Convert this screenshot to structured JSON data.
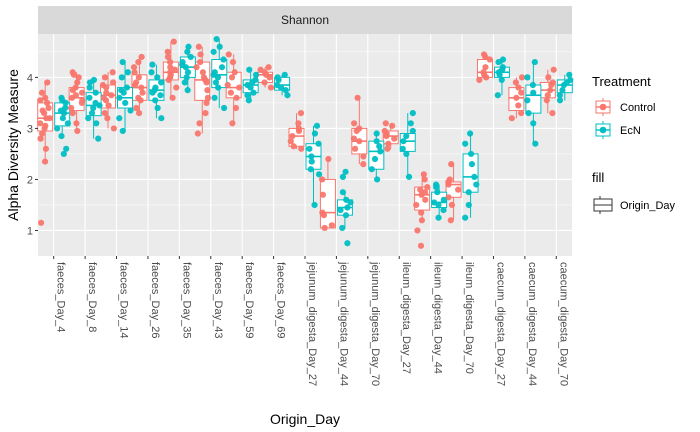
{
  "chart_data": {
    "type": "box",
    "facet_label": "Shannon",
    "xlabel": "Origin_Day",
    "ylabel": "Alpha Diversity Measure",
    "ylim": [
      0.5,
      4.85
    ],
    "y_ticks": [
      1,
      2,
      3,
      4
    ],
    "grid": true,
    "legend_position": "right",
    "categories": [
      "faeces_Day_4",
      "faeces_Day_8",
      "faeces_Day_14",
      "faeces_Day_26",
      "faeces_Day_35",
      "faeces_Day_43",
      "faeces_Day_59",
      "faeces_Day_69",
      "jejunum_digesta_Day_27",
      "jejunum_digesta_Day_44",
      "jejunum_digesta_Day_70",
      "ileum_digesta_Day_27",
      "ileum_digesta_Day_44",
      "ileum_digesta_Day_70",
      "caecum_digesta_Day_27",
      "caecum_digesta_Day_44",
      "caecum_digesta_Day_70"
    ],
    "series": [
      {
        "name": "Control",
        "color": "#F8766D",
        "boxes": [
          {
            "min": 2.35,
            "q1": 2.95,
            "median": 3.2,
            "q3": 3.5,
            "max": 3.9,
            "outliers": [
              1.15
            ],
            "points": [
              2.35,
              2.6,
              2.8,
              2.9,
              3.0,
              3.05,
              3.1,
              3.2,
              3.2,
              3.3,
              3.35,
              3.4,
              3.5,
              3.55,
              3.6,
              3.7,
              3.9,
              1.15
            ]
          },
          {
            "min": 2.95,
            "q1": 3.35,
            "median": 3.6,
            "q3": 3.8,
            "max": 4.1,
            "outliers": [],
            "points": [
              2.95,
              3.1,
              3.3,
              3.4,
              3.5,
              3.55,
              3.6,
              3.65,
              3.7,
              3.75,
              3.8,
              3.9,
              4.0,
              4.05,
              4.1
            ]
          },
          {
            "min": 3.0,
            "q1": 3.4,
            "median": 3.65,
            "q3": 3.85,
            "max": 4.1,
            "outliers": [],
            "points": [
              3.0,
              3.2,
              3.3,
              3.45,
              3.55,
              3.6,
              3.65,
              3.7,
              3.8,
              3.85,
              3.9,
              4.0,
              4.1
            ]
          },
          {
            "min": 3.3,
            "q1": 3.55,
            "median": 3.8,
            "q3": 4.05,
            "max": 4.4,
            "outliers": [],
            "points": [
              3.3,
              3.4,
              3.55,
              3.6,
              3.7,
              3.8,
              3.85,
              3.9,
              4.0,
              4.1,
              4.2,
              4.3,
              4.4
            ]
          },
          {
            "min": 3.6,
            "q1": 3.95,
            "median": 4.1,
            "q3": 4.3,
            "max": 4.7,
            "outliers": [],
            "points": [
              3.6,
              3.8,
              3.95,
              4.0,
              4.05,
              4.1,
              4.15,
              4.2,
              4.3,
              4.4,
              4.5,
              4.7
            ]
          },
          {
            "min": 2.9,
            "q1": 3.55,
            "median": 3.95,
            "q3": 4.3,
            "max": 4.6,
            "outliers": [],
            "points": [
              2.9,
              3.1,
              3.3,
              3.5,
              3.6,
              3.75,
              3.9,
              3.95,
              4.0,
              4.1,
              4.2,
              4.3,
              4.45,
              4.6
            ]
          },
          {
            "min": 3.1,
            "q1": 3.6,
            "median": 3.8,
            "q3": 4.1,
            "max": 4.45,
            "outliers": [],
            "points": [
              3.1,
              3.4,
              3.6,
              3.7,
              3.8,
              3.85,
              4.0,
              4.1,
              4.3,
              4.45
            ]
          },
          {
            "min": 3.8,
            "q1": 3.9,
            "median": 4.05,
            "q3": 4.1,
            "max": 4.2,
            "outliers": [],
            "points": [
              3.8,
              3.9,
              4.0,
              4.05,
              4.1,
              4.15,
              4.2
            ]
          },
          {
            "min": 2.6,
            "q1": 2.65,
            "median": 2.85,
            "q3": 3.0,
            "max": 3.3,
            "outliers": [],
            "points": [
              2.6,
              2.65,
              2.75,
              2.85,
              2.95,
              3.0,
              3.1,
              3.3
            ]
          },
          {
            "min": 1.05,
            "q1": 1.05,
            "median": 1.35,
            "q3": 2.0,
            "max": 2.4,
            "outliers": [],
            "points": [
              1.05,
              1.1,
              1.3,
              1.35,
              1.7,
              2.0,
              2.4
            ]
          },
          {
            "min": 2.3,
            "q1": 2.5,
            "median": 2.75,
            "q3": 3.0,
            "max": 3.6,
            "outliers": [],
            "points": [
              2.3,
              2.45,
              2.6,
              2.75,
              2.8,
              2.95,
              3.0,
              3.1,
              3.6
            ]
          },
          {
            "min": 2.6,
            "q1": 2.7,
            "median": 2.85,
            "q3": 2.95,
            "max": 3.1,
            "outliers": [],
            "points": [
              2.6,
              2.7,
              2.8,
              2.85,
              2.9,
              2.95,
              3.05,
              3.1
            ]
          },
          {
            "min": 1.2,
            "q1": 1.4,
            "median": 1.7,
            "q3": 1.85,
            "max": 2.1,
            "outliers": [
              0.7
            ],
            "points": [
              0.7,
              1.0,
              1.2,
              1.35,
              1.5,
              1.6,
              1.7,
              1.75,
              1.8,
              1.85,
              2.0,
              2.1
            ]
          },
          {
            "min": 1.2,
            "q1": 1.65,
            "median": 1.9,
            "q3": 1.95,
            "max": 2.3,
            "outliers": [],
            "points": [
              1.2,
              1.5,
              1.65,
              1.8,
              1.9,
              1.95,
              2.0,
              2.3
            ]
          },
          {
            "min": 3.95,
            "q1": 4.0,
            "median": 4.1,
            "q3": 4.35,
            "max": 4.45,
            "outliers": [],
            "points": [
              3.95,
              4.0,
              4.05,
              4.1,
              4.2,
              4.35,
              4.4,
              4.45
            ]
          },
          {
            "min": 3.2,
            "q1": 3.35,
            "median": 3.6,
            "q3": 3.8,
            "max": 4.0,
            "outliers": [],
            "points": [
              3.2,
              3.3,
              3.45,
              3.6,
              3.7,
              3.8,
              3.9,
              4.0
            ]
          },
          {
            "min": 3.3,
            "q1": 3.6,
            "median": 3.75,
            "q3": 3.9,
            "max": 4.15,
            "outliers": [],
            "points": [
              3.3,
              3.55,
              3.65,
              3.75,
              3.85,
              3.9,
              4.0,
              4.15
            ]
          }
        ]
      },
      {
        "name": "EcN",
        "color": "#00BFC4",
        "boxes": [
          {
            "min": 2.85,
            "q1": 3.05,
            "median": 3.3,
            "q3": 3.5,
            "max": 3.6,
            "outliers": [
              2.5
            ],
            "points": [
              2.5,
              2.6,
              2.85,
              3.0,
              3.1,
              3.2,
              3.3,
              3.35,
              3.4,
              3.5,
              3.55,
              3.6
            ]
          },
          {
            "min": 2.8,
            "q1": 3.25,
            "median": 3.45,
            "q3": 3.7,
            "max": 3.95,
            "outliers": [],
            "points": [
              2.8,
              3.1,
              3.2,
              3.3,
              3.4,
              3.45,
              3.5,
              3.6,
              3.7,
              3.8,
              3.9,
              3.95
            ]
          },
          {
            "min": 2.95,
            "q1": 3.4,
            "median": 3.6,
            "q3": 3.8,
            "max": 4.3,
            "outliers": [],
            "points": [
              2.95,
              3.2,
              3.35,
              3.5,
              3.6,
              3.7,
              3.75,
              3.8,
              4.0,
              4.1,
              4.3
            ]
          },
          {
            "min": 3.2,
            "q1": 3.55,
            "median": 3.75,
            "q3": 3.95,
            "max": 4.25,
            "outliers": [],
            "points": [
              3.2,
              3.4,
              3.55,
              3.65,
              3.7,
              3.75,
              3.8,
              3.9,
              4.0,
              4.1,
              4.25
            ]
          },
          {
            "min": 3.75,
            "q1": 4.0,
            "median": 4.2,
            "q3": 4.4,
            "max": 4.6,
            "outliers": [],
            "points": [
              3.75,
              3.9,
              4.0,
              4.1,
              4.2,
              4.25,
              4.3,
              4.4,
              4.5,
              4.6
            ]
          },
          {
            "min": 3.4,
            "q1": 3.8,
            "median": 4.05,
            "q3": 4.35,
            "max": 4.75,
            "outliers": [],
            "points": [
              3.4,
              3.6,
              3.8,
              3.9,
              4.0,
              4.05,
              4.1,
              4.2,
              4.35,
              4.5,
              4.6,
              4.75
            ]
          },
          {
            "min": 3.55,
            "q1": 3.7,
            "median": 3.85,
            "q3": 3.95,
            "max": 4.15,
            "outliers": [],
            "points": [
              3.55,
              3.65,
              3.7,
              3.8,
              3.85,
              3.9,
              3.95,
              4.05,
              4.15
            ]
          },
          {
            "min": 3.65,
            "q1": 3.75,
            "median": 3.85,
            "q3": 4.0,
            "max": 4.05,
            "outliers": [],
            "points": [
              3.65,
              3.75,
              3.8,
              3.85,
              3.95,
              4.0,
              4.05
            ]
          },
          {
            "min": 1.5,
            "q1": 2.2,
            "median": 2.45,
            "q3": 2.7,
            "max": 3.05,
            "outliers": [],
            "points": [
              1.5,
              2.1,
              2.2,
              2.35,
              2.45,
              2.6,
              2.7,
              2.9,
              3.05
            ]
          },
          {
            "min": 1.05,
            "q1": 1.3,
            "median": 1.45,
            "q3": 1.6,
            "max": 1.75,
            "outliers": [
              0.75,
              2.05,
              2.15
            ],
            "points": [
              0.75,
              1.05,
              1.3,
              1.4,
              1.45,
              1.55,
              1.6,
              1.75,
              2.05,
              2.15
            ]
          },
          {
            "min": 2.0,
            "q1": 2.2,
            "median": 2.55,
            "q3": 2.75,
            "max": 2.9,
            "outliers": [],
            "points": [
              2.0,
              2.2,
              2.4,
              2.55,
              2.65,
              2.75,
              2.9
            ]
          },
          {
            "min": 2.05,
            "q1": 2.55,
            "median": 2.75,
            "q3": 2.9,
            "max": 3.3,
            "outliers": [],
            "points": [
              2.05,
              2.5,
              2.6,
              2.75,
              2.85,
              2.95,
              3.1,
              3.3
            ]
          },
          {
            "min": 1.25,
            "q1": 1.45,
            "median": 1.55,
            "q3": 1.75,
            "max": 1.9,
            "outliers": [],
            "points": [
              1.25,
              1.4,
              1.5,
              1.55,
              1.6,
              1.75,
              1.85,
              1.9
            ]
          },
          {
            "min": 1.25,
            "q1": 1.75,
            "median": 2.05,
            "q3": 2.5,
            "max": 2.9,
            "outliers": [],
            "points": [
              1.25,
              1.5,
              1.75,
              1.9,
              2.05,
              2.3,
              2.5,
              2.7,
              2.9
            ]
          },
          {
            "min": 3.65,
            "q1": 4.0,
            "median": 4.1,
            "q3": 4.2,
            "max": 4.35,
            "outliers": [],
            "points": [
              3.65,
              3.95,
              4.05,
              4.1,
              4.15,
              4.2,
              4.3,
              4.35
            ]
          },
          {
            "min": 2.7,
            "q1": 3.3,
            "median": 3.65,
            "q3": 3.85,
            "max": 4.3,
            "outliers": [],
            "points": [
              2.7,
              3.1,
              3.3,
              3.55,
              3.7,
              3.85,
              4.0,
              4.3
            ]
          },
          {
            "min": 3.55,
            "q1": 3.7,
            "median": 3.85,
            "q3": 3.95,
            "max": 4.05,
            "outliers": [],
            "points": [
              3.55,
              3.65,
              3.75,
              3.85,
              3.9,
              3.95,
              4.05
            ]
          }
        ]
      }
    ],
    "legend": {
      "title": "Treatment",
      "items": [
        "Control",
        "EcN"
      ],
      "fill_title": "fill",
      "fill_items": [
        "Origin_Day"
      ]
    }
  }
}
